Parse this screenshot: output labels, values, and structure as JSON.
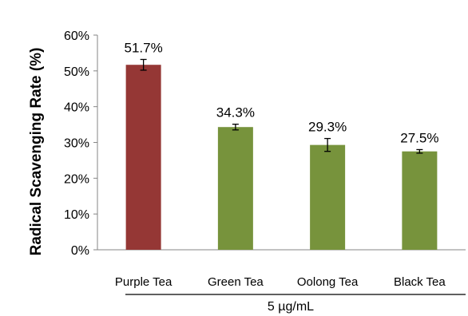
{
  "chart_data": {
    "type": "bar",
    "categories": [
      "Purple Tea",
      "Green Tea",
      "Oolong Tea",
      "Black Tea"
    ],
    "values": [
      51.7,
      34.3,
      29.3,
      27.5
    ],
    "errors": [
      1.5,
      0.8,
      1.8,
      0.5
    ],
    "data_labels": [
      "51.7%",
      "34.3%",
      "29.3%",
      "27.5%"
    ],
    "bar_colors": [
      "#953735",
      "#77933c",
      "#77933c",
      "#77933c"
    ],
    "ylabel": "Radical Scavenging Rate (%)",
    "group_label": "5 µg/mL",
    "ylim": [
      0,
      60
    ],
    "yticks": [
      0,
      10,
      20,
      30,
      40,
      50,
      60
    ],
    "ytick_labels": [
      "0%",
      "10%",
      "20%",
      "30%",
      "40%",
      "50%",
      "60%"
    ],
    "grid": false
  }
}
